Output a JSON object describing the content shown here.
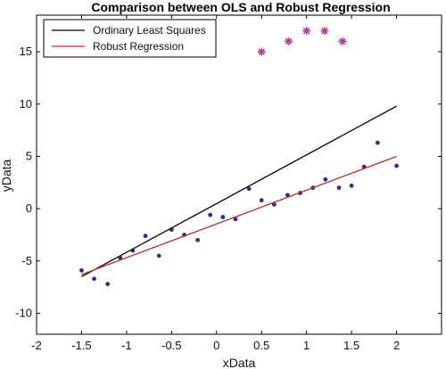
{
  "chart_data": {
    "type": "scatter",
    "title": "Comparison between OLS and Robust Regression",
    "xlabel": "xData",
    "ylabel": "yData",
    "xlim": [
      -2,
      2.5
    ],
    "ylim": [
      -12,
      18.5
    ],
    "xticks": [
      -2,
      -1.5,
      -1,
      -0.5,
      0,
      0.5,
      1,
      1.5,
      2
    ],
    "yticks": [
      -10,
      -5,
      0,
      5,
      10,
      15
    ],
    "grid": false,
    "legend_position": "top-left",
    "series": [
      {
        "name": "",
        "kind": "points",
        "marker": "dot",
        "color": "#2e2e8c",
        "x": [
          -1.5,
          -1.36,
          -1.21,
          -1.07,
          -0.93,
          -0.79,
          -0.64,
          -0.5,
          -0.36,
          -0.21,
          -0.07,
          0.07,
          0.21,
          0.36,
          0.5,
          0.64,
          0.79,
          0.93,
          1.07,
          1.21,
          1.36,
          1.5,
          1.64,
          1.79,
          2.0
        ],
        "y": [
          -5.9,
          -6.7,
          -7.2,
          -4.7,
          -4.0,
          -2.6,
          -4.5,
          -2.0,
          -2.5,
          -3.0,
          -0.6,
          -0.8,
          -1.0,
          1.9,
          0.8,
          0.4,
          1.3,
          1.5,
          2.0,
          2.8,
          2.0,
          2.2,
          4.0,
          6.3,
          4.1
        ]
      },
      {
        "name": "",
        "kind": "points",
        "marker": "asterisk",
        "color": "#b0409a",
        "x": [
          0.5,
          0.8,
          1.0,
          1.2,
          1.4
        ],
        "y": [
          15.0,
          16.0,
          17.0,
          17.0,
          16.0
        ]
      },
      {
        "name": "Ordinary Least Squares",
        "kind": "line",
        "color": "#000000",
        "x": [
          -1.5,
          2.0
        ],
        "y": [
          -6.5,
          9.8
        ]
      },
      {
        "name": "Robust Regression",
        "kind": "line",
        "color": "#b03030",
        "x": [
          -1.5,
          2.0
        ],
        "y": [
          -6.3,
          5.0
        ]
      }
    ],
    "legend": [
      "Ordinary Least Squares",
      "Robust Regression"
    ]
  }
}
